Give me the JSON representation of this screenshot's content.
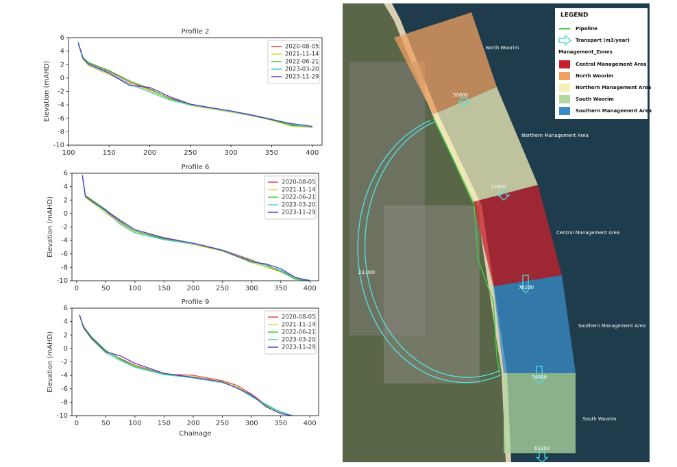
{
  "chart_data": [
    {
      "type": "line",
      "title": "Profile 2",
      "ylabel": "Elevation (mAHD)",
      "x": [
        112,
        118,
        125,
        150,
        175,
        200,
        225,
        250,
        275,
        300,
        325,
        350,
        375,
        400
      ],
      "xlim": [
        100,
        412
      ],
      "xticks": [
        100,
        150,
        200,
        250,
        300,
        350,
        400
      ],
      "ylim": [
        -10,
        6
      ],
      "yticks": [
        -10,
        -8,
        -6,
        -4,
        -2,
        0,
        2,
        4,
        6
      ],
      "grid": false,
      "legend": "upper right",
      "series": [
        {
          "name": "2020-08-05",
          "color": "#e0453f",
          "values": [
            5.0,
            2.9,
            2.2,
            1.0,
            -0.6,
            -1.7,
            -3.0,
            -3.9,
            -4.4,
            -5.0,
            -5.5,
            -6.2,
            -7.0,
            -7.3
          ]
        },
        {
          "name": "2021-11-14",
          "color": "#d8d83a",
          "values": [
            5.2,
            2.7,
            1.8,
            0.5,
            -0.8,
            -1.9,
            -3.2,
            -4.1,
            -4.6,
            -5.1,
            -5.6,
            -6.3,
            -7.2,
            -7.4
          ]
        },
        {
          "name": "2022-06-21",
          "color": "#3cc83c",
          "values": [
            5.1,
            3.0,
            2.3,
            1.1,
            -0.4,
            -1.6,
            -3.1,
            -4.0,
            -4.5,
            -5.0,
            -5.6,
            -6.2,
            -7.1,
            -7.2
          ]
        },
        {
          "name": "2023-03-20",
          "color": "#45d0d0",
          "values": [
            5.0,
            2.8,
            2.1,
            0.8,
            -0.9,
            -2.1,
            -3.3,
            -4.0,
            -4.5,
            -5.0,
            -5.5,
            -6.1,
            -6.9,
            -7.3
          ]
        },
        {
          "name": "2023-11-29",
          "color": "#5a3cc8",
          "values": [
            5.3,
            2.9,
            2.0,
            0.7,
            -1.1,
            -1.4,
            -2.8,
            -3.9,
            -4.4,
            -4.9,
            -5.5,
            -6.2,
            -6.8,
            -7.2
          ]
        }
      ]
    },
    {
      "type": "line",
      "title": "Profile 6",
      "ylabel": "Elevation (mAHD)",
      "x": [
        10,
        15,
        25,
        50,
        75,
        100,
        150,
        200,
        250,
        300,
        325,
        350,
        375,
        400
      ],
      "xlim": [
        -8,
        415
      ],
      "xticks": [
        0,
        50,
        100,
        150,
        200,
        250,
        300,
        350,
        400
      ],
      "ylim": [
        -10,
        6
      ],
      "yticks": [
        -10,
        -8,
        -6,
        -4,
        -2,
        0,
        2,
        4,
        6
      ],
      "grid": false,
      "legend": "upper right",
      "series": [
        {
          "name": "2020-08-05",
          "color": "#e0453f",
          "values": [
            5.6,
            2.6,
            2.0,
            0.4,
            -1.3,
            -2.6,
            -3.7,
            -4.4,
            -5.4,
            -6.9,
            -7.8,
            -8.6,
            -9.6,
            -10.0
          ]
        },
        {
          "name": "2021-11-14",
          "color": "#d8d83a",
          "values": [
            5.5,
            2.4,
            1.7,
            0.1,
            -1.5,
            -2.8,
            -3.9,
            -4.6,
            -5.6,
            -7.3,
            -8.0,
            -8.7,
            -9.7,
            -10.0
          ]
        },
        {
          "name": "2022-06-21",
          "color": "#3cc83c",
          "values": [
            5.6,
            2.7,
            2.1,
            0.6,
            -1.2,
            -2.6,
            -3.8,
            -4.5,
            -5.5,
            -7.0,
            -7.6,
            -8.6,
            -9.8,
            -10.0
          ]
        },
        {
          "name": "2023-03-20",
          "color": "#45d0d0",
          "values": [
            5.5,
            2.5,
            1.9,
            0.3,
            -1.6,
            -2.9,
            -3.9,
            -4.5,
            -5.4,
            -7.1,
            -7.8,
            -8.4,
            -9.6,
            -9.9
          ]
        },
        {
          "name": "2023-11-29",
          "color": "#5a3cc8",
          "values": [
            5.7,
            2.6,
            1.9,
            0.5,
            -1.0,
            -2.4,
            -3.6,
            -4.4,
            -5.5,
            -7.2,
            -7.5,
            -8.2,
            -9.5,
            -10.0
          ]
        }
      ]
    },
    {
      "type": "line",
      "title": "Profile 9",
      "ylabel": "Elevation (mAHD)",
      "xlabel": "Chainage",
      "x": [
        5,
        12,
        25,
        50,
        75,
        100,
        150,
        200,
        250,
        275,
        300,
        325,
        350,
        370
      ],
      "xlim": [
        -8,
        415
      ],
      "xticks": [
        0,
        50,
        100,
        150,
        200,
        250,
        300,
        350,
        400
      ],
      "ylim": [
        -10,
        6
      ],
      "yticks": [
        -10,
        -8,
        -6,
        -4,
        -2,
        0,
        2,
        4,
        6
      ],
      "grid": false,
      "legend": "upper right",
      "series": [
        {
          "name": "2020-08-05",
          "color": "#e0453f",
          "values": [
            5.0,
            3.2,
            1.7,
            -0.4,
            -1.5,
            -2.5,
            -3.8,
            -4.0,
            -4.8,
            -5.5,
            -6.8,
            -8.4,
            -9.5,
            -10.0
          ]
        },
        {
          "name": "2021-11-14",
          "color": "#d8d83a",
          "values": [
            5.1,
            3.0,
            1.4,
            -0.7,
            -1.7,
            -2.6,
            -3.9,
            -4.2,
            -4.9,
            -5.7,
            -7.0,
            -8.6,
            -9.6,
            -10.0
          ]
        },
        {
          "name": "2022-06-21",
          "color": "#3cc83c",
          "values": [
            4.8,
            3.3,
            1.8,
            -0.3,
            -1.6,
            -2.7,
            -3.8,
            -4.3,
            -5.0,
            -5.9,
            -7.1,
            -8.5,
            -9.4,
            -10.0
          ]
        },
        {
          "name": "2023-03-20",
          "color": "#45d0d0",
          "values": [
            4.9,
            3.1,
            1.5,
            -0.6,
            -1.8,
            -2.8,
            -3.9,
            -4.4,
            -5.1,
            -5.8,
            -7.2,
            -8.3,
            -9.5,
            -10.0
          ]
        },
        {
          "name": "2023-11-29",
          "color": "#5a3cc8",
          "values": [
            5.0,
            3.1,
            1.6,
            -0.5,
            -1.1,
            -2.2,
            -3.7,
            -4.3,
            -5.0,
            -5.9,
            -6.9,
            -8.7,
            -9.7,
            -10.0
          ]
        }
      ]
    }
  ],
  "map": {
    "legend": {
      "title": "LEGEND",
      "pipeline": "Pipeline",
      "transport": "Transport (m3/year)",
      "zones_title": "Management_Zones",
      "items": [
        {
          "label": "Central Management Area",
          "color": "#c8202a"
        },
        {
          "label": "North Woorim",
          "color": "#f0a060"
        },
        {
          "label": "Northern Management Area",
          "color": "#f4f0b8"
        },
        {
          "label": "South Woorim",
          "color": "#b0d8a0"
        },
        {
          "label": "Southern Management Area",
          "color": "#3a8cc8"
        }
      ]
    },
    "zone_labels": [
      "North Woorim",
      "Northern Management Area",
      "Central Management Area",
      "Southern Management Area",
      "South Woorim"
    ],
    "transport": [
      "50000",
      "71600",
      "76200",
      "74800",
      "63200",
      "23,000"
    ]
  }
}
